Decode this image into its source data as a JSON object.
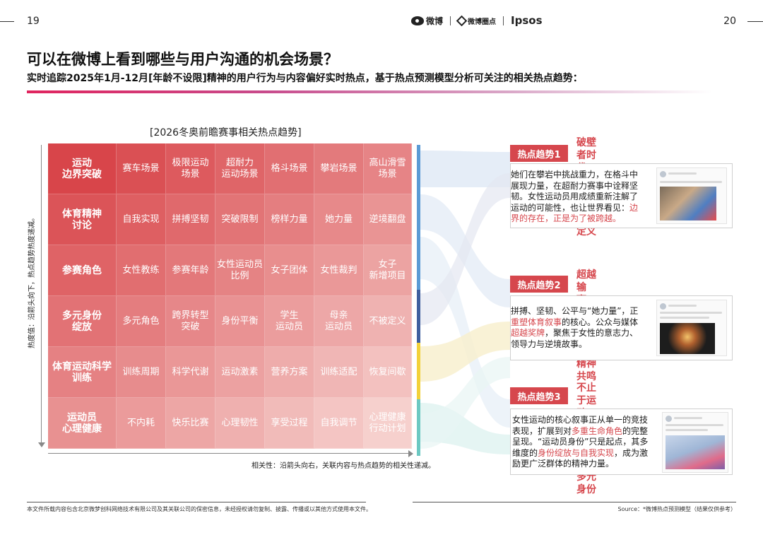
{
  "page": {
    "left_number": "19",
    "right_number": "20"
  },
  "logos": {
    "weibo": "微博",
    "circle": "微博圈点",
    "ipsos": "Ipsos"
  },
  "title": "可以在微博上看到哪些与用户沟通的机会场景？",
  "subtitle": "实时追踪2025年1月-12月[年龄不设限]精神的用户行为与内容偏好实时热点，基于热点预测模型分析可关注的相关热点趋势：",
  "grid": {
    "title": "[2026冬奥前瞻赛事相关热点趋势]",
    "y_axis_label": "热度值：沿箭头向下，热点趋势热度递减。",
    "x_axis_label": "相关性：沿箭头向右，关联内容与热点趋势的相关性递减。",
    "rows": [
      {
        "head": "运动\n边界突破",
        "cells": [
          "赛车场景",
          "极限运动\n场景",
          "超耐力\n运动场景",
          "格斗场景",
          "攀岩场景",
          "高山滑雪\n场景"
        ]
      },
      {
        "head": "体育精神\n讨论",
        "cells": [
          "自我实现",
          "拼搏坚韧",
          "突破限制",
          "榜样力量",
          "她力量",
          "逆境翻盘"
        ]
      },
      {
        "head": "参赛角色",
        "cells": [
          "女性教练",
          "参赛年龄",
          "女性运动员\n比例",
          "女子团体",
          "女性裁判",
          "女子\n新增项目"
        ]
      },
      {
        "head": "多元身份\n绽放",
        "cells": [
          "多元角色",
          "跨界转型\n突破",
          "身份平衡",
          "学生\n运动员",
          "母亲\n运动员",
          "不被定义"
        ]
      },
      {
        "head": "体育运动科学\n训练",
        "cells": [
          "训练周期",
          "科学代谢",
          "运动激素",
          "营养方案",
          "训练适配",
          "恢复间歇"
        ]
      },
      {
        "head": "运动员\n心理健康",
        "cells": [
          "不内耗",
          "快乐比赛",
          "心理韧性",
          "享受过程",
          "自我调节",
          "心理健康\n行动计划"
        ]
      }
    ]
  },
  "trends": [
    {
      "tag": "热点趋势1",
      "heading": "破壁者时代：\n运动边界在被重新定义",
      "text_segments": [
        {
          "text": "她们在攀岩中挑战重力，在格斗中展现力量，在超耐力赛事中诠释坚韧。女性运动员用成绩重新注解了运动的可能性，也让世界看见：",
          "highlight": false
        },
        {
          "text": "边界的存在，正是为了被跨越。",
          "highlight": true
        }
      ]
    },
    {
      "tag": "热点趋势2",
      "heading": "超越输赢：\n冬奥赛场激荡运动精神共鸣",
      "text_segments": [
        {
          "text": "拼搏、坚韧、公平与“她力量”，正",
          "highlight": false
        },
        {
          "text": "重塑体育叙事",
          "highlight": true
        },
        {
          "text": "的核心。公众与媒体",
          "highlight": false
        },
        {
          "text": "超越奖牌",
          "highlight": true
        },
        {
          "text": "，聚焦于女性的意志力、领导力与逆境故事。",
          "highlight": false
        }
      ]
    },
    {
      "tag": "热点趋势3",
      "heading": "不止于运动员：\n冬奥舞台绽放多元身份",
      "text_segments": [
        {
          "text": "女性运动的核心叙事正从单一的竞技表现，扩展到对",
          "highlight": false
        },
        {
          "text": "多重生命角色",
          "highlight": true
        },
        {
          "text": "的完整呈现。“运动员身份”只是起点，其多维度的",
          "highlight": false
        },
        {
          "text": "身份绽放与自我实现",
          "highlight": true
        },
        {
          "text": "，成为激励更广泛群体的精神力量。",
          "highlight": false
        }
      ]
    }
  ],
  "footer": {
    "left": "本文件所载内容包含北京微梦创科网络技术有限公司及其关联公司的保密信息，未经授权请勿复制、披露、传播或以其他方式使用本文件。",
    "right": "Source：*微博热点预测模型（结果仅供参考）"
  },
  "colors": {
    "accent": "#d6474d",
    "grid_dark": "#d8454a",
    "grid_light": "#f4c5c3"
  },
  "icons": {
    "y_arrow": "down-arrow-icon",
    "x_arrow": "right-arrow-icon"
  }
}
